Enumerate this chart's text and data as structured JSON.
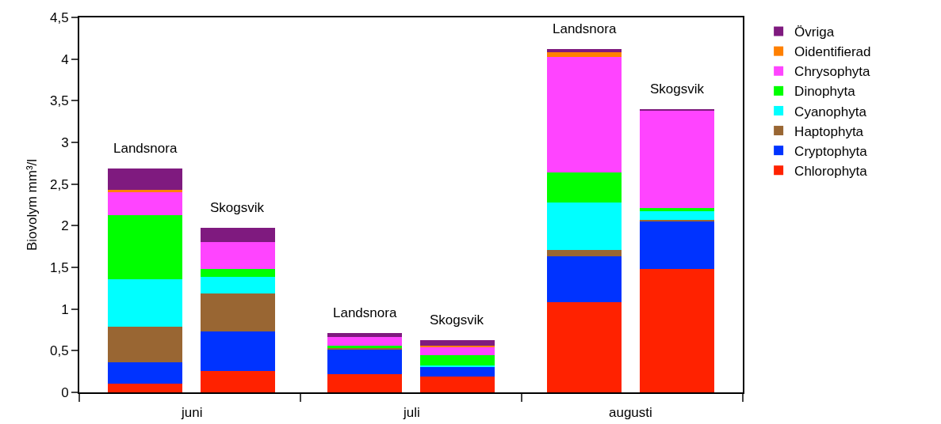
{
  "chart_data": {
    "type": "bar",
    "stacked": true,
    "ylabel": "Biovolym mm³/l",
    "categories": [
      "Landsnora",
      "Skogsvik",
      "Landsnora",
      "Skogsvik",
      "Landsnora",
      "Skogsvik"
    ],
    "annotations": [
      "juni",
      "juli",
      "augusti"
    ],
    "series": [
      {
        "name": "Chlorophyta",
        "color": "#ff2200",
        "values": [
          0.1,
          0.26,
          0.22,
          0.19,
          1.08,
          1.48
        ]
      },
      {
        "name": "Cryptophyta",
        "color": "#0033ff",
        "values": [
          0.26,
          0.47,
          0.29,
          0.12,
          0.55,
          0.58
        ]
      },
      {
        "name": "Haptophyta",
        "color": "#996633",
        "values": [
          0.43,
          0.46,
          0.02,
          0,
          0.08,
          0.01
        ]
      },
      {
        "name": "Cyanophyta",
        "color": "#00ffff",
        "values": [
          0.57,
          0.2,
          0,
          0.01,
          0.57,
          0.1
        ]
      },
      {
        "name": "Dinophyta",
        "color": "#00ff00",
        "values": [
          0.77,
          0.09,
          0.03,
          0.13,
          0.36,
          0.04
        ]
      },
      {
        "name": "Chrysophyta",
        "color": "#ff44ff",
        "values": [
          0.27,
          0.32,
          0.1,
          0.1,
          1.39,
          1.17
        ]
      },
      {
        "name": "Oidentifierad",
        "color": "#ff8000",
        "values": [
          0.03,
          0,
          0,
          0.01,
          0.05,
          0
        ]
      },
      {
        "name": "Övriga",
        "color": "#7f1a7f",
        "values": [
          0.26,
          0.17,
          0.05,
          0.07,
          0.04,
          0.02
        ]
      }
    ],
    "ylim": [
      0,
      4.5
    ],
    "yticks": [
      0,
      {
        "value": 0.5,
        "label": "0,5"
      },
      1,
      {
        "value": 1.5,
        "label": "1,5"
      },
      2,
      {
        "value": 2.5,
        "label": "2,5"
      },
      3,
      {
        "value": 3.5,
        "label": "3,5"
      },
      4,
      {
        "value": 4.5,
        "label": "4,5"
      }
    ],
    "grid": false,
    "legend": "right",
    "tick_labels": "y"
  }
}
